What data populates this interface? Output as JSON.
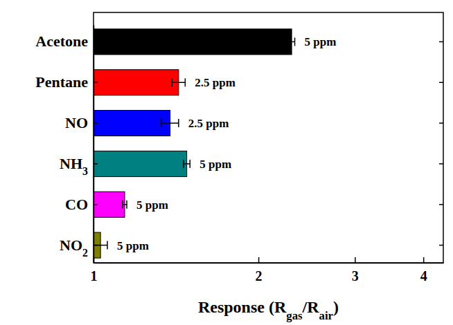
{
  "chart_data": {
    "type": "bar",
    "orientation": "horizontal",
    "log": "x",
    "categories": [
      "Acetone",
      "Pentane",
      "NO",
      "NH3",
      "CO",
      "NO2"
    ],
    "values": [
      2.3,
      1.43,
      1.38,
      1.48,
      1.14,
      1.03
    ],
    "errors": [
      0.03,
      0.04,
      0.05,
      0.02,
      0.01,
      0.03
    ],
    "concentrations": [
      "5 ppm",
      "2.5 ppm",
      "2.5 ppm",
      "5 ppm",
      "5 ppm",
      "5 ppm"
    ],
    "colors": [
      "#000000",
      "#ff0000",
      "#0000ff",
      "#008080",
      "#ff00ff",
      "#808000"
    ],
    "x_label": [
      "Response (R",
      "gas",
      "/R",
      "air",
      ")"
    ],
    "xlim": [
      1,
      4.35
    ],
    "xticks": [
      1,
      2,
      3,
      4
    ],
    "grid": false
  }
}
